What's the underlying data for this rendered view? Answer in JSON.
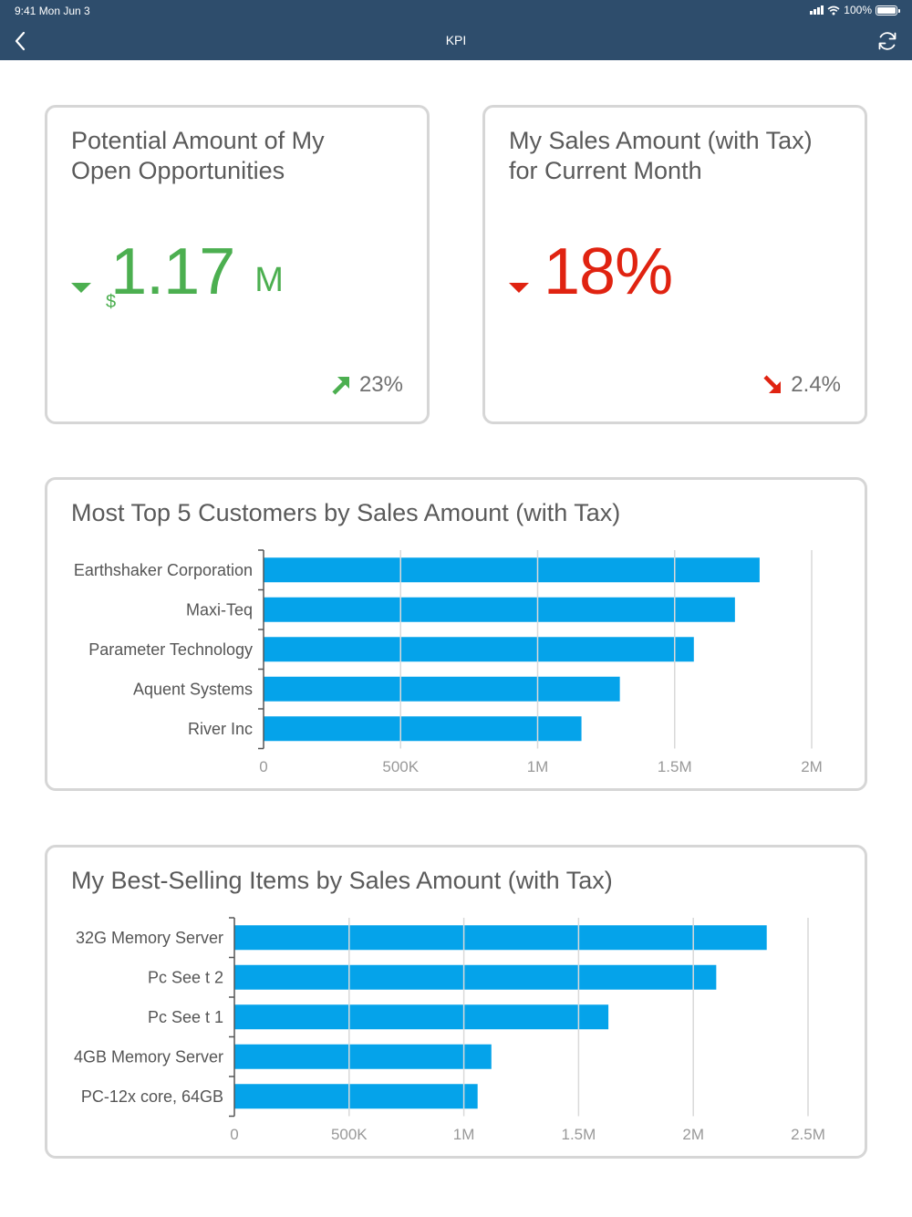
{
  "status_bar": {
    "time": "9:41  Mon Jun 3",
    "battery": "100%"
  },
  "nav": {
    "title": "KPI",
    "back_icon": "chevron-left-icon",
    "refresh_icon": "refresh-icon"
  },
  "kpi_cards": [
    {
      "title_line1": "Potential Amount of My",
      "title_line2": "Open Opportunities",
      "currency": "$",
      "value": "1.17",
      "unit": "M",
      "delta": "23%",
      "value_color": "#4caf50",
      "delta_direction": "up"
    },
    {
      "title_line1": "My Sales Amount (with Tax)",
      "title_line2": "for Current Month",
      "value": "18%",
      "delta": "2.4%",
      "value_color": "#e02311",
      "delta_direction": "down"
    }
  ],
  "chart_data": [
    {
      "type": "bar",
      "orientation": "horizontal",
      "title": "Most Top 5 Customers by Sales Amount (with Tax)",
      "categories": [
        "Earthshaker Corporation",
        "Maxi-Teq",
        "Parameter Technology",
        "Aquent Systems",
        "River Inc"
      ],
      "values": [
        1810000,
        1720000,
        1570000,
        1300000,
        1160000
      ],
      "xlim": [
        0,
        2000000
      ],
      "ticks": [
        0,
        500000,
        1000000,
        1500000,
        2000000
      ],
      "tick_labels": [
        "0",
        "500K",
        "1M",
        "1.5M",
        "2M"
      ],
      "color": "#05a3ea",
      "grid": true
    },
    {
      "type": "bar",
      "orientation": "horizontal",
      "title": "My Best-Selling Items by Sales Amount (with Tax)",
      "categories": [
        "32G Memory Server",
        "Pc See t 2",
        "Pc See t 1",
        "4GB Memory Server",
        "PC-12x core, 64GB"
      ],
      "values": [
        2320000,
        2100000,
        1630000,
        1120000,
        1060000
      ],
      "xlim": [
        0,
        2500000
      ],
      "ticks": [
        0,
        500000,
        1000000,
        1500000,
        2000000,
        2500000
      ],
      "tick_labels": [
        "0",
        "500K",
        "1M",
        "1.5M",
        "2M",
        "2.5M"
      ],
      "color": "#05a3ea",
      "grid": true
    }
  ]
}
